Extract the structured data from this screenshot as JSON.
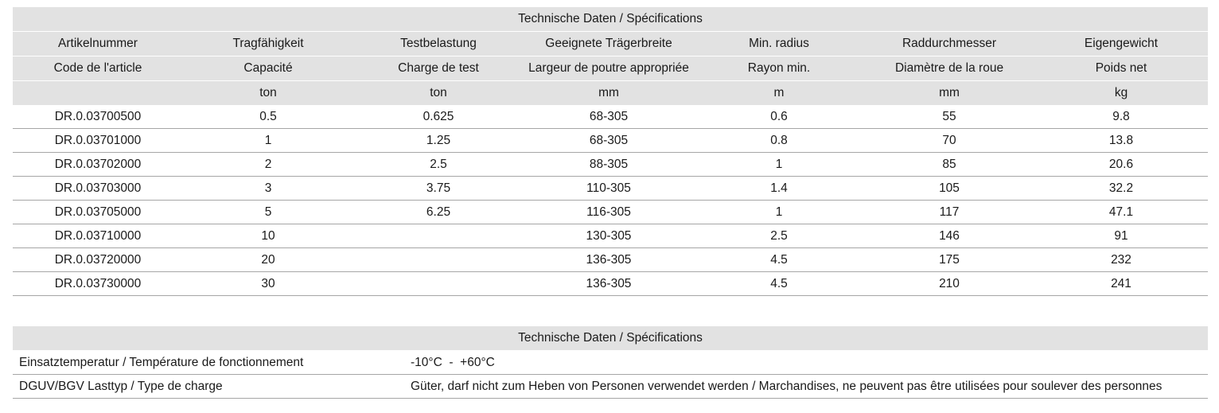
{
  "spec_table": {
    "title": "Technische Daten / Spécifications",
    "headers_de": [
      "Artikelnummer",
      "Tragfähigkeit",
      "Testbelastung",
      "Geeignete Trägerbreite",
      "Min. radius",
      "Raddurchmesser",
      "Eigengewicht"
    ],
    "headers_fr": [
      "Code de l'article",
      "Capacité",
      "Charge de test",
      "Largeur de poutre appropriée",
      "Rayon min.",
      "Diamètre de la roue",
      "Poids net"
    ],
    "units": [
      "",
      "ton",
      "ton",
      "mm",
      "m",
      "mm",
      "kg"
    ],
    "rows": [
      [
        "DR.0.03700500",
        "0.5",
        "0.625",
        "68-305",
        "0.6",
        "55",
        "9.8"
      ],
      [
        "DR.0.03701000",
        "1",
        "1.25",
        "68-305",
        "0.8",
        "70",
        "13.8"
      ],
      [
        "DR.0.03702000",
        "2",
        "2.5",
        "88-305",
        "1",
        "85",
        "20.6"
      ],
      [
        "DR.0.03703000",
        "3",
        "3.75",
        "110-305",
        "1.4",
        "105",
        "32.2"
      ],
      [
        "DR.0.03705000",
        "5",
        "6.25",
        "116-305",
        "1",
        "117",
        "47.1"
      ],
      [
        "DR.0.03710000",
        "10",
        "",
        "130-305",
        "2.5",
        "146",
        "91"
      ],
      [
        "DR.0.03720000",
        "20",
        "",
        "136-305",
        "4.5",
        "175",
        "232"
      ],
      [
        "DR.0.03730000",
        "30",
        "",
        "136-305",
        "4.5",
        "210",
        "241"
      ]
    ]
  },
  "params_table": {
    "title": "Technische Daten / Spécifications",
    "rows": [
      {
        "label": "Einsatztemperatur / Température de fonctionnement",
        "value": "-10°C  -  +60°C"
      },
      {
        "label": "DGUV/BGV Lasttyp / Type de charge",
        "value": "Güter, darf nicht zum Heben von Personen verwendet werden / Marchandises, ne peuvent pas être utilisées pour soulever des personnes"
      }
    ]
  }
}
